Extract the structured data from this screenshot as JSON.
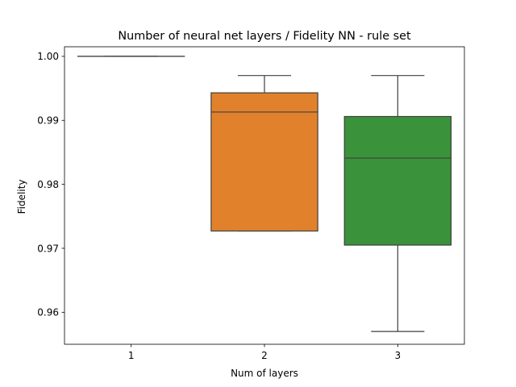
{
  "chart_data": {
    "type": "box",
    "title": "Number of neural net layers / Fidelity NN - rule set",
    "xlabel": "Num of layers",
    "ylabel": "Fidelity",
    "ylim": [
      0.955,
      1.0015
    ],
    "grid": false,
    "legend": "none",
    "yticks": [
      0.96,
      0.97,
      0.98,
      0.99,
      1.0
    ],
    "ytick_labels": [
      "0.96",
      "0.97",
      "0.98",
      "0.99",
      "1.00"
    ],
    "categories": [
      "1",
      "2",
      "3"
    ],
    "boxes": [
      {
        "category": "1",
        "color": "#1f77b4",
        "whisker_low": 1.0,
        "q1": 1.0,
        "median": 1.0,
        "q3": 1.0,
        "whisker_high": 1.0
      },
      {
        "category": "2",
        "color": "#e1812c",
        "whisker_low": 0.9727,
        "q1": 0.9727,
        "median": 0.9913,
        "q3": 0.9943,
        "whisker_high": 0.997
      },
      {
        "category": "3",
        "color": "#3a923a",
        "whisker_low": 0.957,
        "q1": 0.9705,
        "median": 0.9841,
        "q3": 0.9906,
        "whisker_high": 0.997
      }
    ]
  }
}
